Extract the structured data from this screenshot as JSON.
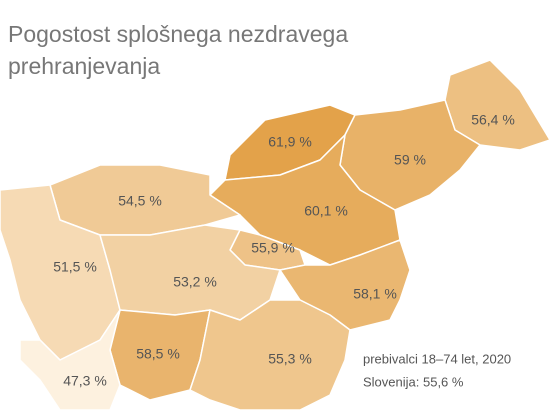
{
  "chart_data": {
    "type": "choropleth",
    "title": "Pogostost splošnega nezdravega",
    "subtitle": "prehranjevanja",
    "values": [
      61.9,
      56.4,
      59,
      60.1,
      54.5,
      51.5,
      55.9,
      53.2,
      58.1,
      58.5,
      55.3,
      47.3
    ],
    "value_labels": [
      "61,9 %",
      "56,4 %",
      "59 %",
      "60,1 %",
      "54,5 %",
      "51,5 %",
      "55,9 %",
      "53,2 %",
      "58,1 %",
      "58,5 %",
      "55,3 %",
      "47,3 %"
    ],
    "colors": [
      "#fdf1df",
      "#e3a24a"
    ],
    "annotations": [
      "prebivalci 18–74 let, 2020",
      "Slovenija: 55,6 %"
    ]
  }
}
